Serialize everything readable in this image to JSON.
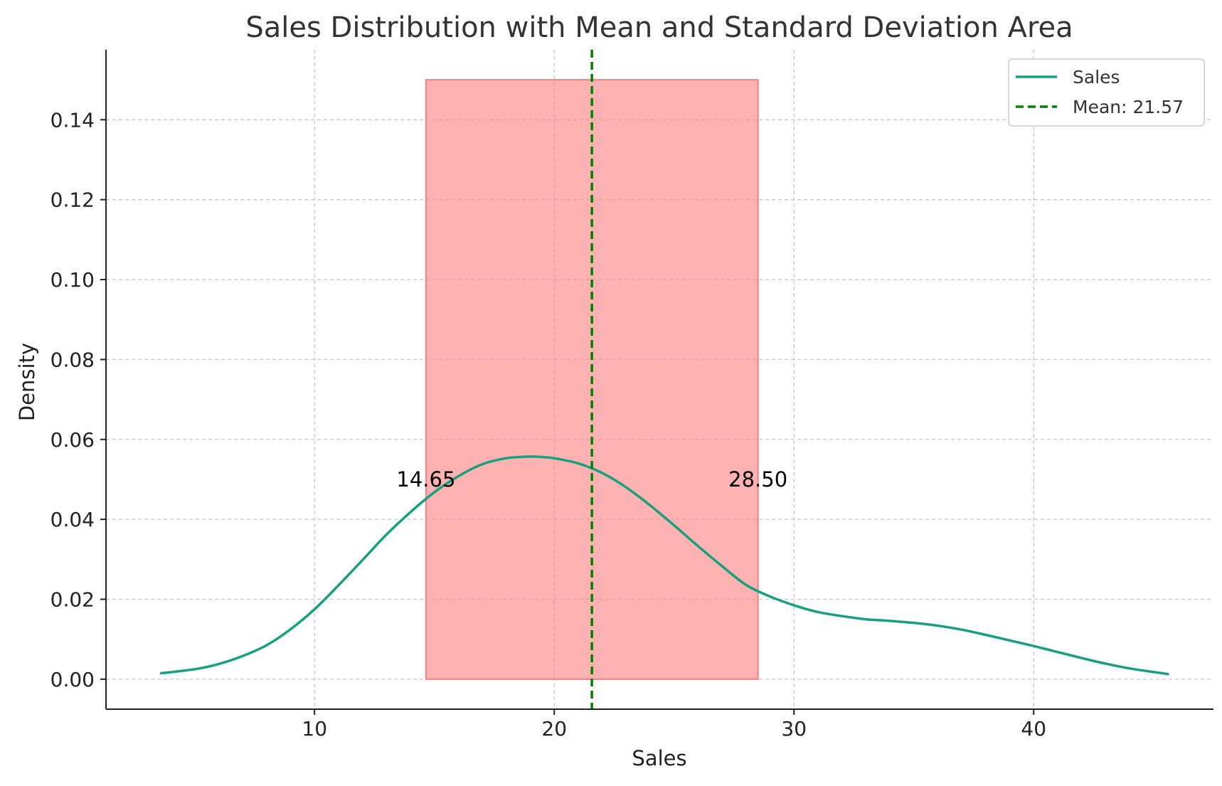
{
  "chart_data": {
    "type": "line",
    "title": "Sales Distribution with Mean and Standard Deviation Area",
    "xlabel": "Sales",
    "ylabel": "Density",
    "xlim": [
      1.3,
      47.5
    ],
    "ylim": [
      -0.0075,
      0.1575
    ],
    "xticks": [
      10,
      20,
      30,
      40
    ],
    "xtick_labels": [
      "10",
      "20",
      "30",
      "40"
    ],
    "yticks": [
      0.0,
      0.02,
      0.04,
      0.06,
      0.08,
      0.1,
      0.12,
      0.14
    ],
    "ytick_labels": [
      "0.00",
      "0.02",
      "0.04",
      "0.06",
      "0.08",
      "0.10",
      "0.12",
      "0.14"
    ],
    "grid": true,
    "grid_style": "dashed",
    "legend_position": "top-right",
    "series": [
      {
        "name": "Sales",
        "color": "#16a07f",
        "x": [
          3.6,
          5.0,
          6.0,
          7.0,
          8.0,
          9.0,
          10.0,
          11.0,
          12.0,
          13.0,
          14.0,
          15.0,
          16.0,
          17.0,
          18.0,
          19.0,
          19.5,
          20.0,
          21.0,
          22.0,
          23.0,
          24.0,
          25.0,
          26.0,
          27.0,
          28.0,
          29.0,
          30.0,
          31.0,
          32.0,
          33.0,
          34.0,
          35.0,
          36.0,
          37.0,
          38.0,
          39.0,
          40.0,
          41.0,
          42.0,
          43.0,
          44.0,
          45.0,
          45.6
        ],
        "y": [
          0.0015,
          0.0025,
          0.0038,
          0.0058,
          0.0085,
          0.0125,
          0.0175,
          0.0235,
          0.0298,
          0.0362,
          0.0418,
          0.0468,
          0.0508,
          0.0538,
          0.0553,
          0.0557,
          0.0556,
          0.0553,
          0.054,
          0.0516,
          0.048,
          0.0435,
          0.0385,
          0.0333,
          0.0283,
          0.0236,
          0.0207,
          0.0185,
          0.0168,
          0.0158,
          0.015,
          0.0146,
          0.0141,
          0.0134,
          0.0124,
          0.0111,
          0.0097,
          0.0083,
          0.0068,
          0.0053,
          0.0039,
          0.0027,
          0.0018,
          0.0013
        ]
      }
    ],
    "mean": {
      "value": 21.57,
      "legend_label": "Mean: 21.57",
      "color": "#008000"
    },
    "std_area": {
      "x_min": 14.65,
      "x_max": 28.5,
      "y_top": 0.15,
      "fill_color": "#ff7f7f",
      "edge_color": "#f08080",
      "labels": [
        {
          "text": "14.65",
          "x": 14.65,
          "y": 0.05
        },
        {
          "text": "28.50",
          "x": 28.5,
          "y": 0.05
        }
      ]
    }
  }
}
